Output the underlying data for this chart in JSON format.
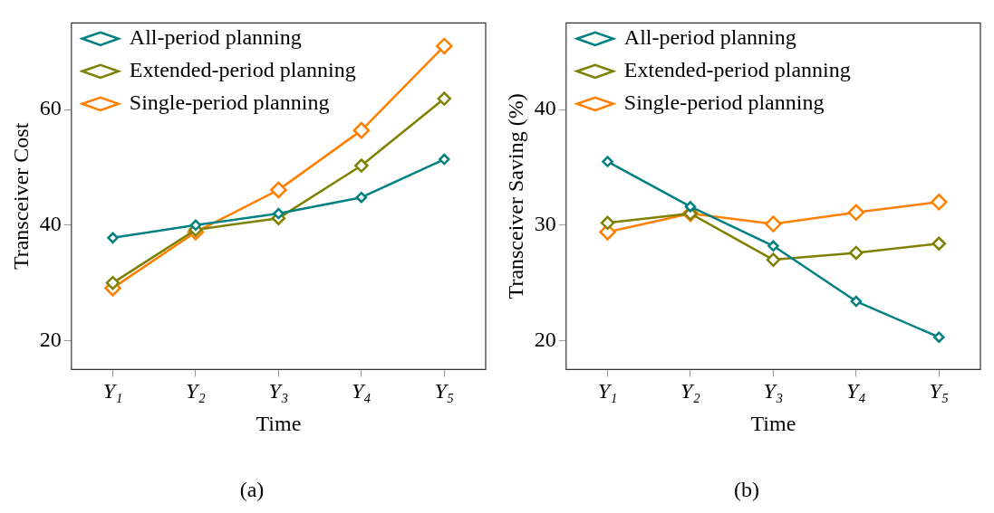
{
  "chart_data": [
    {
      "type": "line",
      "xlabel": "Time",
      "ylabel": "Transceiver Cost",
      "categories": [
        "Y₁",
        "Y₂",
        "Y₃",
        "Y₄",
        "Y₅"
      ],
      "ylim": [
        15,
        75
      ],
      "yticks": [
        20,
        40,
        60
      ],
      "legend": "top left",
      "marker": "diamond",
      "line_style": "solid",
      "annotations": [
        "(a)"
      ],
      "series": [
        {
          "name": "All-period planning",
          "color": "#008080",
          "values": [
            37.8,
            40,
            42,
            44.8,
            51.4
          ]
        },
        {
          "name": "Extended-period planning",
          "color": "#808000",
          "values": [
            30,
            39.2,
            41.2,
            50.3,
            61.9
          ]
        },
        {
          "name": "Single-period planning",
          "color": "#ff8000",
          "values": [
            29.1,
            38.8,
            46.1,
            56.4,
            71
          ]
        }
      ]
    },
    {
      "type": "line",
      "xlabel": "Time",
      "ylabel": "Transceiver Saving (%)",
      "categories": [
        "Y₁",
        "Y₂",
        "Y₃",
        "Y₄",
        "Y₅"
      ],
      "ylim": [
        17.5,
        47.5
      ],
      "yticks": [
        20,
        30,
        40
      ],
      "legend": "top left",
      "marker": "diamond",
      "line_style": "solid",
      "annotations": [
        "(b)"
      ],
      "series": [
        {
          "name": "All-period planning",
          "color": "#008080",
          "values": [
            35.5,
            31.6,
            28.2,
            23.4,
            20.3
          ]
        },
        {
          "name": "Extended-period planning",
          "color": "#808000",
          "values": [
            30.2,
            31,
            27,
            27.6,
            28.4
          ]
        },
        {
          "name": "Single-period planning",
          "color": "#ff8000",
          "values": [
            29.4,
            31,
            30.1,
            31.1,
            32
          ]
        }
      ]
    }
  ]
}
